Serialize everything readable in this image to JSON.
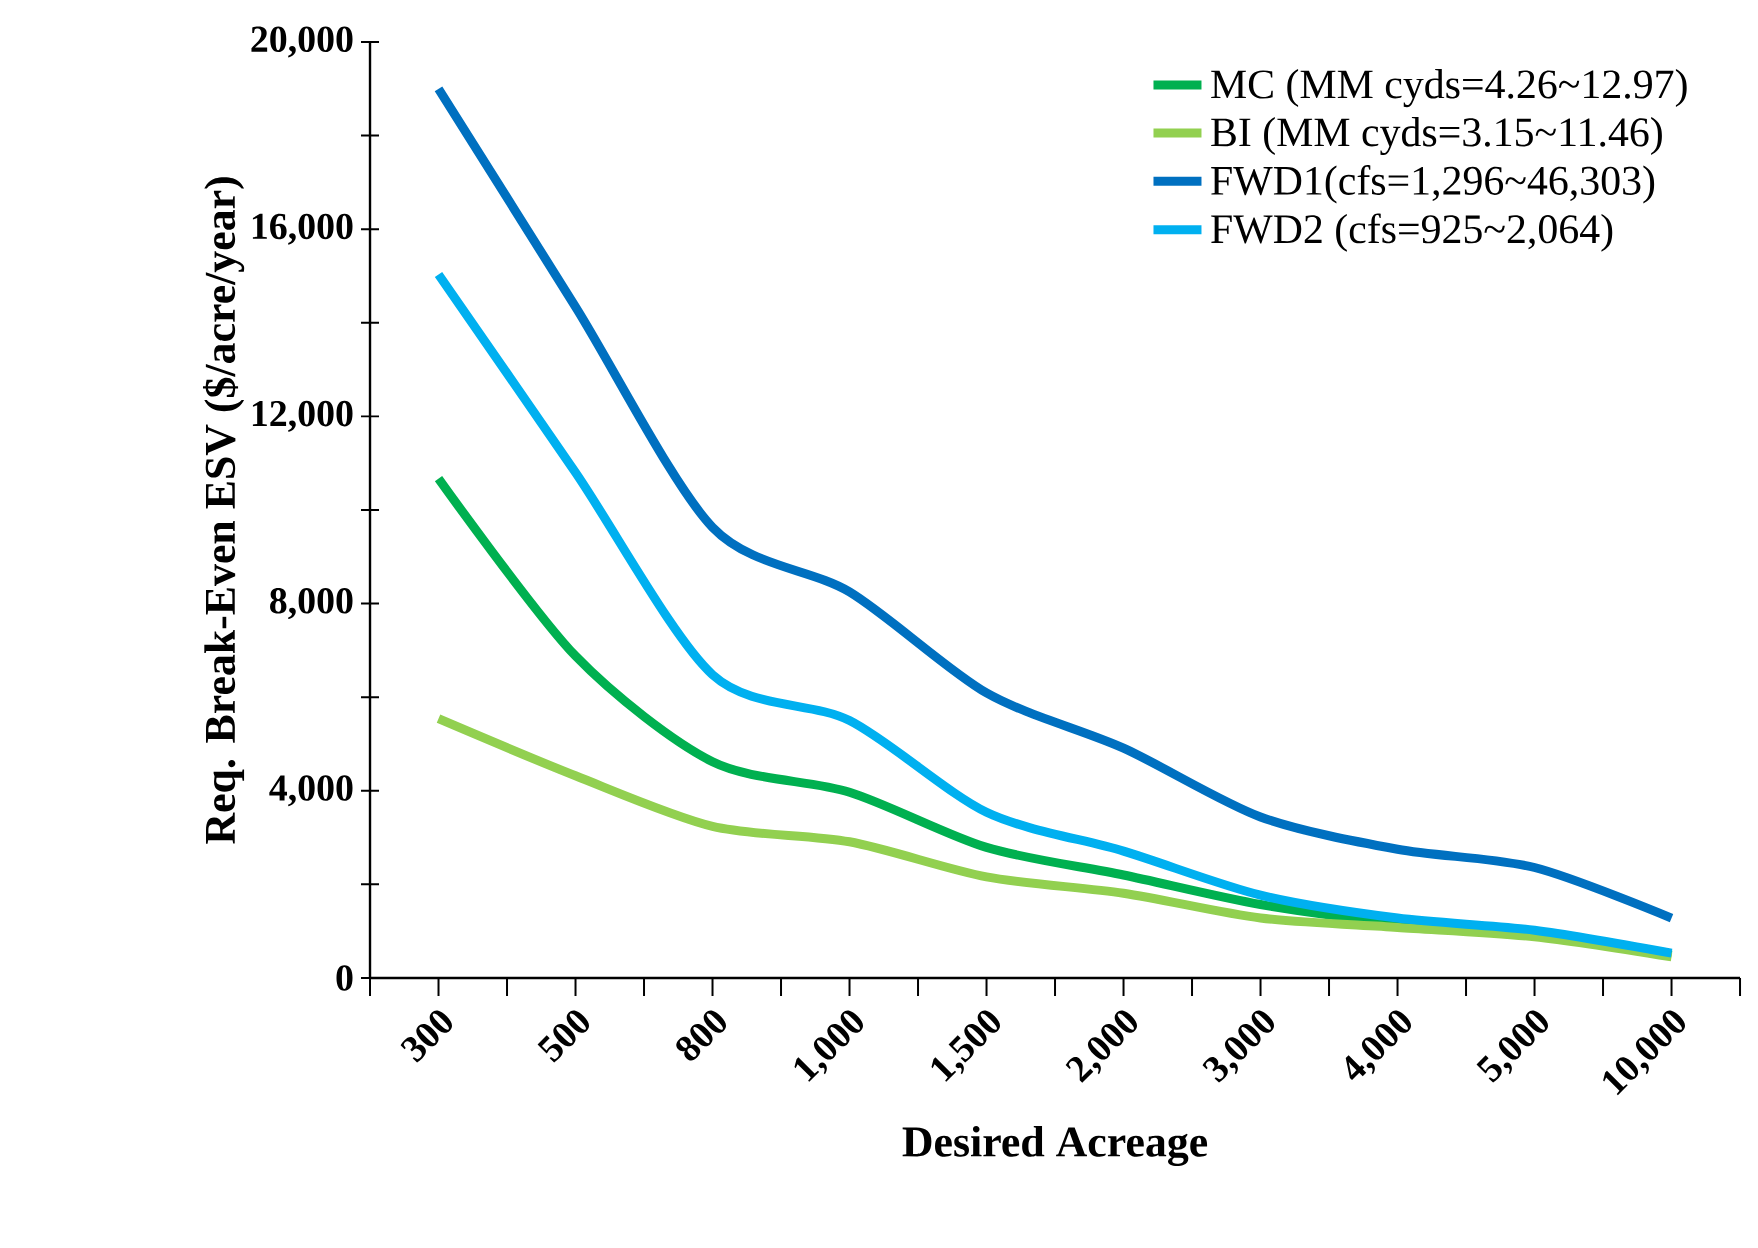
{
  "chart_data": {
    "type": "line",
    "xlabel": "Desired Acreage",
    "ylabel": "Req. Break-Even ESV ($/acre/year)",
    "categories": [
      "300",
      "500",
      "800",
      "1,000",
      "1,500",
      "2,000",
      "3,000",
      "4,000",
      "5,000",
      "10,000"
    ],
    "series": [
      {
        "name": "MC (MM cyds=4.26~12.97)",
        "color": "#00b050",
        "values": [
          10670,
          6880,
          4620,
          3970,
          2790,
          2200,
          1570,
          1180,
          980,
          490
        ]
      },
      {
        "name": "BI (MM cyds=3.15~11.46)",
        "color": "#92d050",
        "values": [
          5540,
          4320,
          3240,
          2910,
          2160,
          1810,
          1280,
          1080,
          880,
          450
        ]
      },
      {
        "name": "FWD1(cfs=1,296~46,303)",
        "color": "#0070c0",
        "values": [
          19000,
          14340,
          9630,
          8250,
          6090,
          4910,
          3440,
          2750,
          2360,
          1280
        ]
      },
      {
        "name": "FWD2 (cfs=925~2,064)",
        "color": "#00b0f0",
        "values": [
          15030,
          10800,
          6480,
          5500,
          3540,
          2710,
          1770,
          1280,
          1020,
          530
        ]
      }
    ],
    "ylim": [
      0,
      20000
    ],
    "yticks": [
      {
        "value": 0,
        "label": "0"
      },
      {
        "value": 2000,
        "label": null
      },
      {
        "value": 4000,
        "label": "4,000"
      },
      {
        "value": 6000,
        "label": null
      },
      {
        "value": 8000,
        "label": "8,000"
      },
      {
        "value": 10000,
        "label": null
      },
      {
        "value": 12000,
        "label": "12,000"
      },
      {
        "value": 14000,
        "label": null
      },
      {
        "value": 16000,
        "label": "16,000"
      },
      {
        "value": 18000,
        "label": null
      },
      {
        "value": 20000,
        "label": "20,000"
      }
    ],
    "grid": false,
    "legend": "top right",
    "marker": "none",
    "line_style": "solid"
  }
}
